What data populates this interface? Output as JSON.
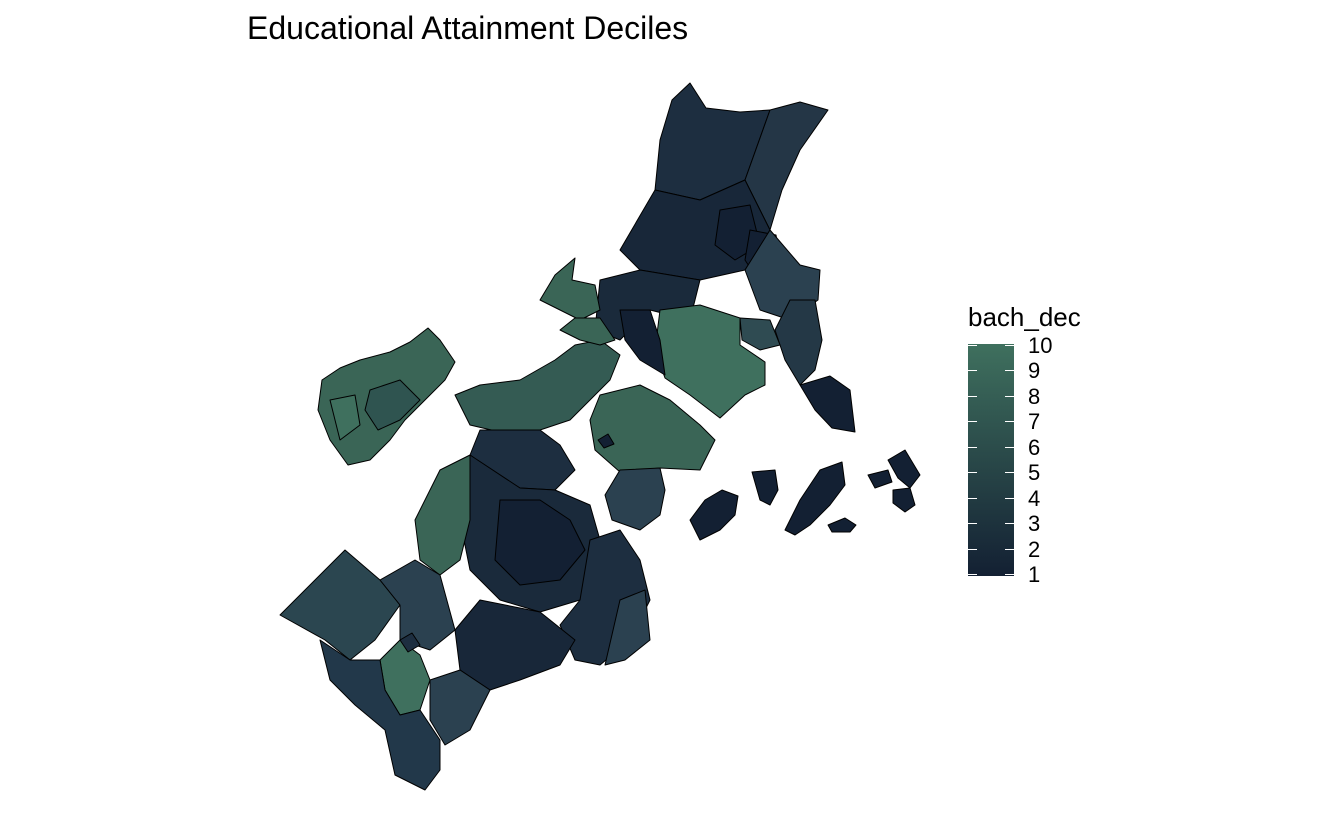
{
  "title": "Educational Attainment Deciles",
  "legend": {
    "title": "bach_dec",
    "labels": [
      "10",
      "9",
      "8",
      "7",
      "6",
      "5",
      "4",
      "3",
      "2",
      "1"
    ],
    "color_high": "#3f705e",
    "color_low": "#132033"
  },
  "colors": {
    "stroke": "#000000",
    "background": "#ffffff"
  }
}
